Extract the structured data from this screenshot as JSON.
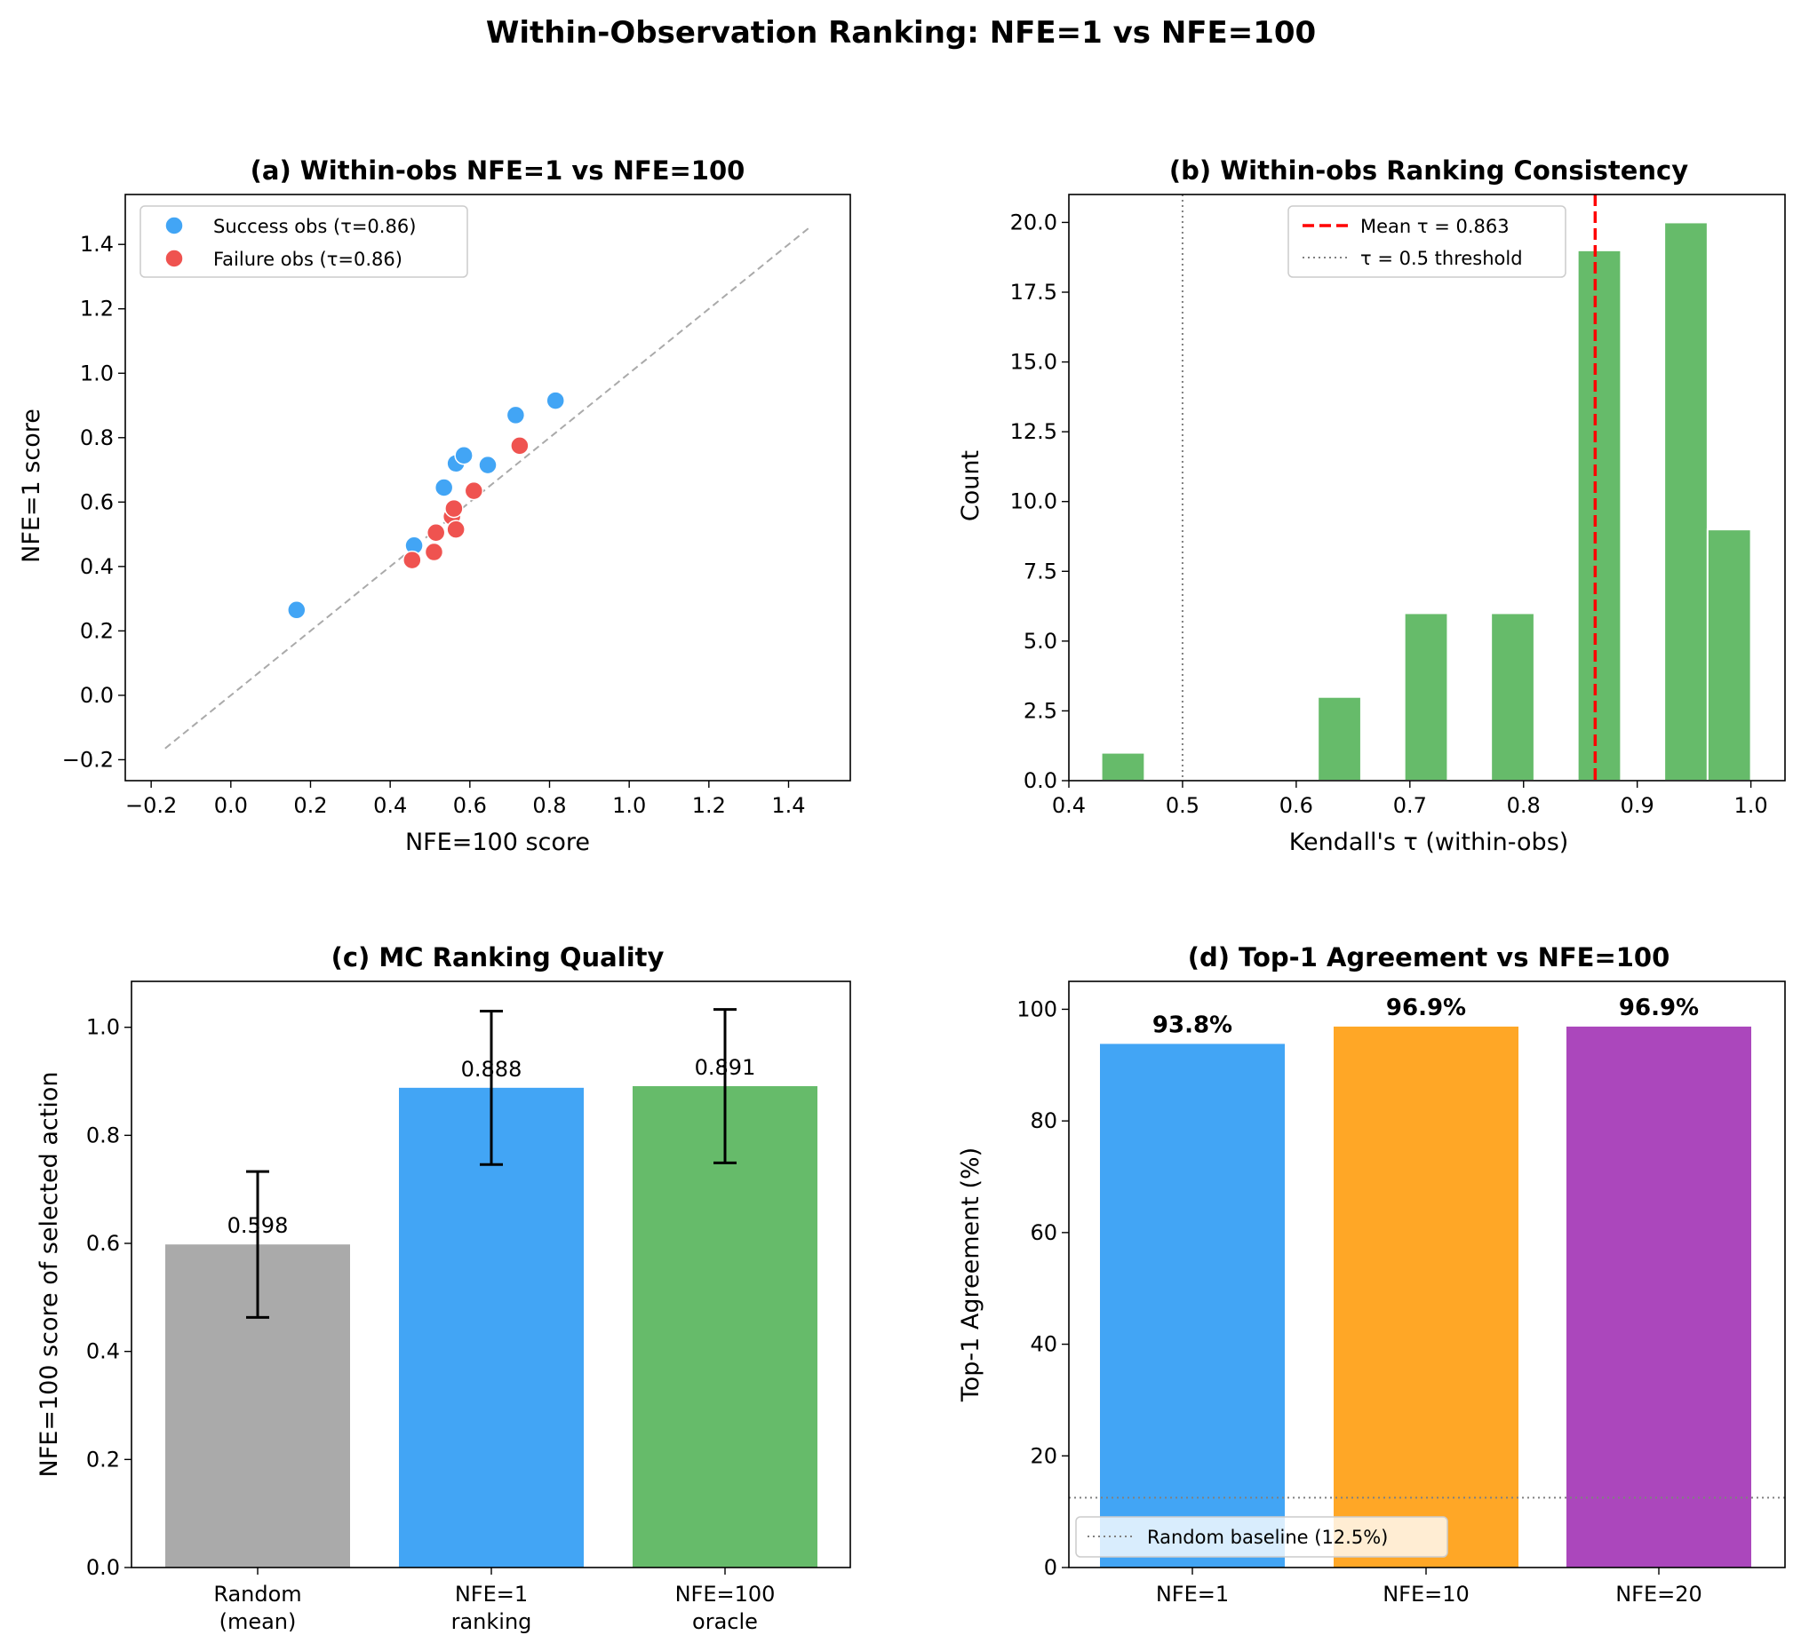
{
  "figure": {
    "title": "Within-Observation Ranking: NFE=1 vs NFE=100"
  },
  "chart_data": [
    {
      "id": "a",
      "type": "scatter",
      "title": "(a) Within-obs NFE=1 vs NFE=100",
      "xlabel": "NFE=100 score",
      "ylabel": "NFE=1 score",
      "xlim": [
        -0.265,
        1.555
      ],
      "ylim": [
        -0.265,
        1.555
      ],
      "xticks": [
        -0.2,
        0.0,
        0.2,
        0.4,
        0.6,
        0.8,
        1.0,
        1.2,
        1.4
      ],
      "xtick_labels": [
        "−0.2",
        "0.0",
        "0.2",
        "0.4",
        "0.6",
        "0.8",
        "1.0",
        "1.2",
        "1.4"
      ],
      "yticks": [
        -0.2,
        0.0,
        0.2,
        0.4,
        0.6,
        0.8,
        1.0,
        1.2,
        1.4
      ],
      "ytick_labels": [
        "−0.2",
        "0.0",
        "0.2",
        "0.4",
        "0.6",
        "0.8",
        "1.0",
        "1.2",
        "1.4"
      ],
      "reference_line": {
        "style": "dashed",
        "from": [
          -0.165,
          -0.165
        ],
        "to": [
          1.455,
          1.455
        ],
        "color": "#aaaaaa"
      },
      "legend": {
        "position": "top-left"
      },
      "series": [
        {
          "name": "Success obs (τ=0.86)",
          "color": "#42a5f5",
          "points": [
            [
              0.165,
              0.265
            ],
            [
              0.46,
              0.465
            ],
            [
              0.535,
              0.645
            ],
            [
              0.565,
              0.72
            ],
            [
              0.585,
              0.745
            ],
            [
              0.645,
              0.715
            ],
            [
              0.715,
              0.87
            ],
            [
              0.815,
              0.915
            ]
          ]
        },
        {
          "name": "Failure obs (τ=0.86)",
          "color": "#ef5350",
          "points": [
            [
              0.455,
              0.42
            ],
            [
              0.51,
              0.445
            ],
            [
              0.515,
              0.505
            ],
            [
              0.555,
              0.555
            ],
            [
              0.56,
              0.58
            ],
            [
              0.565,
              0.515
            ],
            [
              0.61,
              0.635
            ],
            [
              0.725,
              0.775
            ]
          ]
        }
      ]
    },
    {
      "id": "b",
      "type": "bar",
      "title": "(b) Within-obs Ranking Consistency",
      "xlabel": "Kendall's τ (within-obs)",
      "ylabel": "Count",
      "xlim": [
        0.4,
        1.03
      ],
      "ylim": [
        0,
        21
      ],
      "xticks": [
        0.4,
        0.5,
        0.6,
        0.7,
        0.8,
        0.9,
        1.0
      ],
      "xtick_labels": [
        "0.4",
        "0.5",
        "0.6",
        "0.7",
        "0.8",
        "0.9",
        "1.0"
      ],
      "yticks": [
        0.0,
        2.5,
        5.0,
        7.5,
        10.0,
        12.5,
        15.0,
        17.5,
        20.0
      ],
      "ytick_labels": [
        "0.0",
        "2.5",
        "5.0",
        "7.5",
        "10.0",
        "12.5",
        "15.0",
        "17.5",
        "20.0"
      ],
      "bar_color": "#66bb6a",
      "bins": [
        {
          "left": 0.4286,
          "right": 0.4667,
          "count": 1
        },
        {
          "left": 0.619,
          "right": 0.6571,
          "count": 3
        },
        {
          "left": 0.6952,
          "right": 0.7333,
          "count": 6
        },
        {
          "left": 0.7714,
          "right": 0.8095,
          "count": 6
        },
        {
          "left": 0.8476,
          "right": 0.8857,
          "count": 19
        },
        {
          "left": 0.9238,
          "right": 0.9619,
          "count": 20
        },
        {
          "left": 0.9619,
          "right": 1.0,
          "count": 9
        }
      ],
      "vlines": [
        {
          "x": 0.863,
          "label": "Mean τ = 0.863",
          "color": "#ff0000",
          "style": "dashed"
        },
        {
          "x": 0.5,
          "label": "τ = 0.5 threshold",
          "color": "#808080",
          "style": "dotted"
        }
      ],
      "legend": {
        "position": "top-center"
      }
    },
    {
      "id": "c",
      "type": "bar",
      "title": "(c) MC Ranking Quality",
      "xlabel": "",
      "ylabel": "NFE=100 score of selected action",
      "ylim": [
        0,
        1.085
      ],
      "yticks": [
        0.0,
        0.2,
        0.4,
        0.6,
        0.8,
        1.0
      ],
      "ytick_labels": [
        "0.0",
        "0.2",
        "0.4",
        "0.6",
        "0.8",
        "1.0"
      ],
      "categories": [
        [
          "Random",
          "(mean)"
        ],
        [
          "NFE=1",
          "ranking"
        ],
        [
          "NFE=100",
          "oracle"
        ]
      ],
      "values": [
        0.598,
        0.888,
        0.891
      ],
      "value_labels": [
        "0.598",
        "0.888",
        "0.891"
      ],
      "errors": [
        0.135,
        0.142,
        0.142
      ],
      "colors": [
        "#aaaaaa",
        "#42a5f5",
        "#66bb6a"
      ]
    },
    {
      "id": "d",
      "type": "bar",
      "title": "(d) Top-1 Agreement vs NFE=100",
      "xlabel": "",
      "ylabel": "Top-1 Agreement (%)",
      "ylim": [
        0,
        105
      ],
      "yticks": [
        0,
        20,
        40,
        60,
        80,
        100
      ],
      "ytick_labels": [
        "0",
        "20",
        "40",
        "60",
        "80",
        "100"
      ],
      "categories": [
        "NFE=1",
        "NFE=10",
        "NFE=20"
      ],
      "values": [
        93.8,
        96.9,
        96.9
      ],
      "value_labels": [
        "93.8%",
        "96.9%",
        "96.9%"
      ],
      "colors": [
        "#42a5f5",
        "#ffa726",
        "#ab47bc"
      ],
      "hline": {
        "y": 12.5,
        "label": "Random baseline (12.5%)",
        "color": "#808080",
        "style": "dotted"
      },
      "legend": {
        "position": "bottom-left"
      }
    }
  ]
}
